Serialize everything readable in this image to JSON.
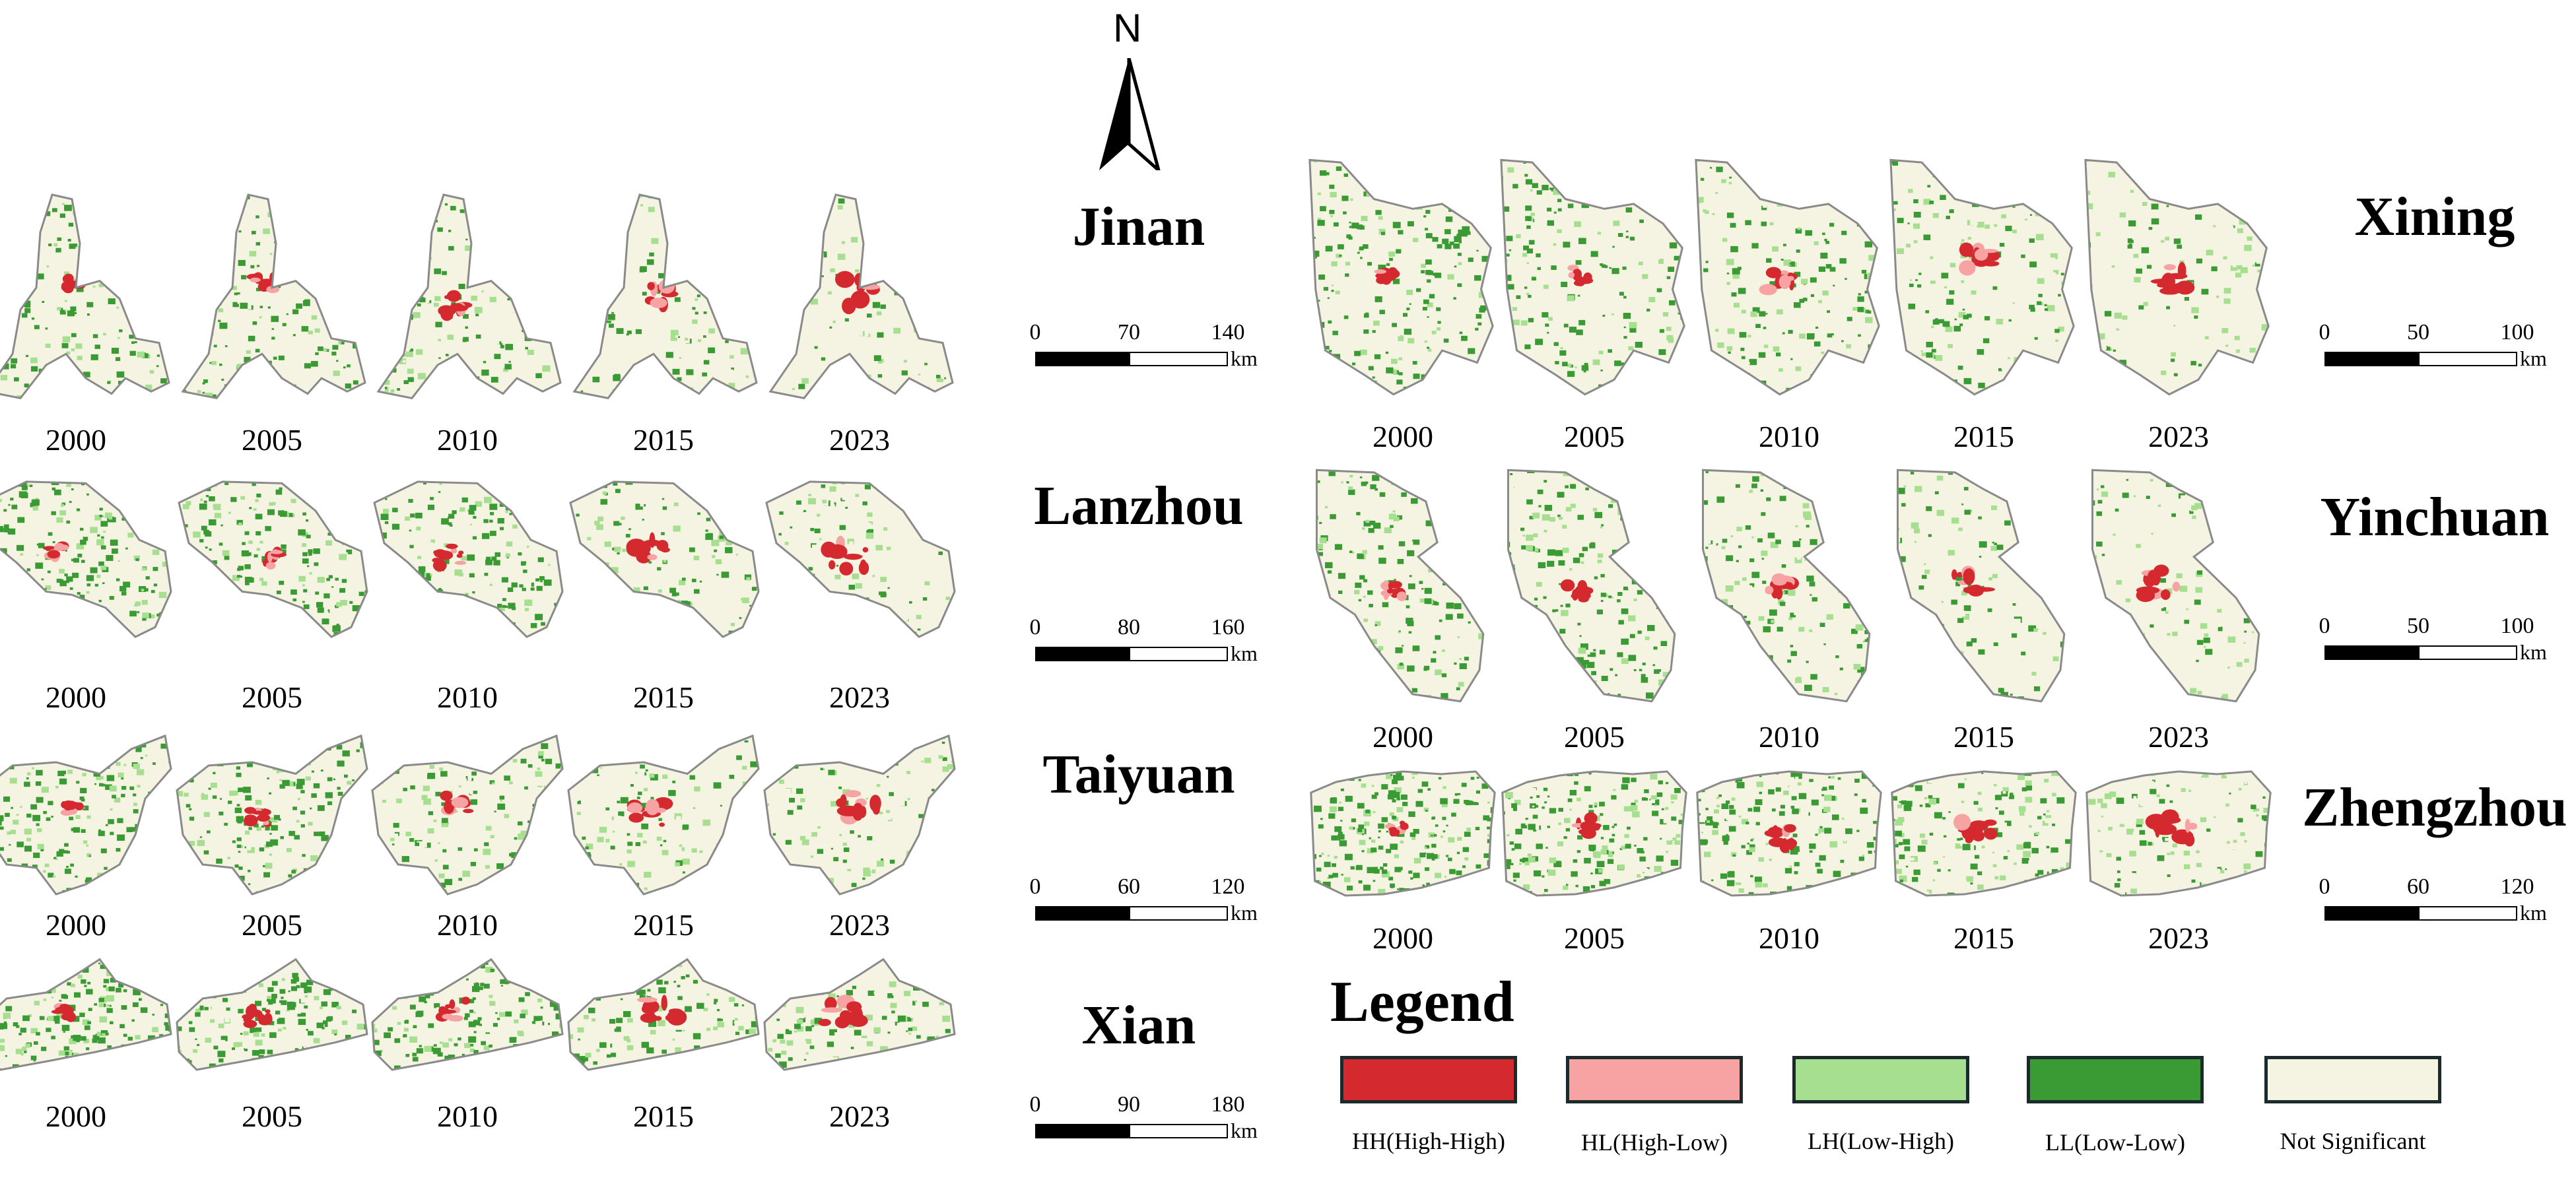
{
  "colors": {
    "HH": "#d42a2f",
    "HL": "#f7a3a3",
    "LH": "#a6df8f",
    "LL": "#3a9b34",
    "NS": "#f5f3e1",
    "boundary": "#8a8a8a"
  },
  "north_label": "N",
  "cities": [
    {
      "name": "Jinan",
      "years": [
        "2000",
        "2005",
        "2010",
        "2015",
        "2023"
      ],
      "scale": {
        "labels": [
          "0",
          "70",
          "140"
        ],
        "unit": "km"
      }
    },
    {
      "name": "Lanzhou",
      "years": [
        "2000",
        "2005",
        "2010",
        "2015",
        "2023"
      ],
      "scale": {
        "labels": [
          "0",
          "80",
          "160"
        ],
        "unit": "km"
      }
    },
    {
      "name": "Taiyuan",
      "years": [
        "2000",
        "2005",
        "2010",
        "2015",
        "2023"
      ],
      "scale": {
        "labels": [
          "0",
          "60",
          "120"
        ],
        "unit": "km"
      }
    },
    {
      "name": "Xian",
      "years": [
        "2000",
        "2005",
        "2010",
        "2015",
        "2023"
      ],
      "scale": {
        "labels": [
          "0",
          "90",
          "180"
        ],
        "unit": "km"
      }
    },
    {
      "name": "Xining",
      "years": [
        "2000",
        "2005",
        "2010",
        "2015",
        "2023"
      ],
      "scale": {
        "labels": [
          "0",
          "50",
          "100"
        ],
        "unit": "km"
      }
    },
    {
      "name": "Yinchuan",
      "years": [
        "2000",
        "2005",
        "2010",
        "2015",
        "2023"
      ],
      "scale": {
        "labels": [
          "0",
          "50",
          "100"
        ],
        "unit": "km"
      }
    },
    {
      "name": "Zhengzhou",
      "years": [
        "2000",
        "2005",
        "2010",
        "2015",
        "2023"
      ],
      "scale": {
        "labels": [
          "0",
          "60",
          "120"
        ],
        "unit": "km"
      }
    }
  ],
  "legend": {
    "title": "Legend",
    "items": [
      {
        "label": "HH(High-High)",
        "color": "#d42a2f"
      },
      {
        "label": "HL(High-Low)",
        "color": "#f7a3a3"
      },
      {
        "label": "LH(Low-High)",
        "color": "#a6df8f"
      },
      {
        "label": "LL(Low-Low)",
        "color": "#3a9b34"
      },
      {
        "label": "Not Significant",
        "color": "#f5f3e1"
      }
    ]
  }
}
